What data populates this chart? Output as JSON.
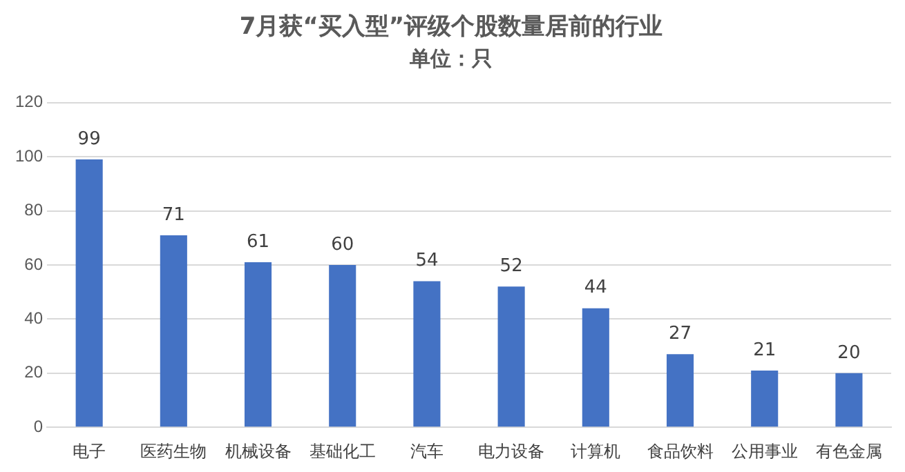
{
  "chart_data": {
    "type": "bar",
    "title": "7月获“买入型”评级个股数量居前的行业",
    "subtitle": "单位：只",
    "categories": [
      "电子",
      "医药生物",
      "机械设备",
      "基础化工",
      "汽车",
      "电力设备",
      "计算机",
      "食品饮料",
      "公用事业",
      "有色金属"
    ],
    "values": [
      99,
      71,
      61,
      60,
      54,
      52,
      44,
      27,
      21,
      20
    ],
    "color": "#4472c4",
    "ylim": [
      0,
      120
    ],
    "yticks": [
      0,
      20,
      40,
      60,
      80,
      100,
      120
    ],
    "grid": "y",
    "data_labels": true,
    "legend": false
  }
}
